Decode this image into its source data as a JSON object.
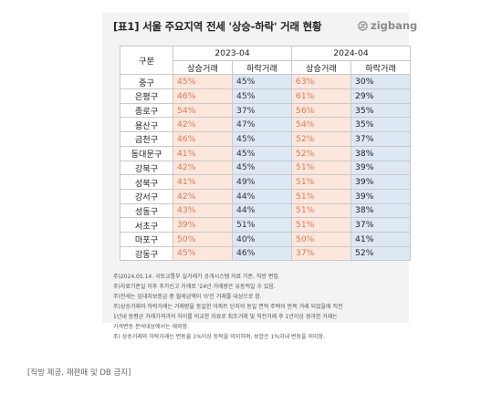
{
  "title": "[표1] 서울 주요지역 전세 '상승-하락' 거래 현황",
  "brand": "zigbang",
  "table": {
    "region_header": "구분",
    "period_1": "2023-04",
    "period_2": "2024-04",
    "sub_headers": [
      "상승거래",
      "하락거래",
      "상승거래",
      "하락거래"
    ],
    "rows": [
      {
        "region": "중구",
        "v": [
          "45%",
          "45%",
          "63%",
          "30%"
        ]
      },
      {
        "region": "은평구",
        "v": [
          "46%",
          "45%",
          "61%",
          "29%"
        ]
      },
      {
        "region": "종로구",
        "v": [
          "54%",
          "37%",
          "56%",
          "35%"
        ]
      },
      {
        "region": "용산구",
        "v": [
          "42%",
          "47%",
          "54%",
          "35%"
        ]
      },
      {
        "region": "금천구",
        "v": [
          "46%",
          "45%",
          "52%",
          "37%"
        ]
      },
      {
        "region": "동대문구",
        "v": [
          "41%",
          "45%",
          "52%",
          "38%"
        ]
      },
      {
        "region": "강북구",
        "v": [
          "42%",
          "45%",
          "51%",
          "39%"
        ]
      },
      {
        "region": "성북구",
        "v": [
          "41%",
          "49%",
          "51%",
          "39%"
        ]
      },
      {
        "region": "강서구",
        "v": [
          "42%",
          "44%",
          "51%",
          "39%"
        ]
      },
      {
        "region": "성동구",
        "v": [
          "43%",
          "44%",
          "51%",
          "38%"
        ]
      },
      {
        "region": "서초구",
        "v": [
          "39%",
          "51%",
          "51%",
          "37%"
        ]
      },
      {
        "region": "마포구",
        "v": [
          "50%",
          "40%",
          "50%",
          "41%"
        ]
      },
      {
        "region": "강동구",
        "v": [
          "45%",
          "46%",
          "37%",
          "52%"
        ]
      }
    ]
  },
  "notes": [
    "주)2024.05.14. 국토교통부 실거래가 공개시스템 자료 기준, 직방 편집.",
    "주)자료기준일 이후 추가신고 거래로 '24년 거래량은 유동적일 수 있음.",
    "주)전세는 임대차보증금 중 월세금액이 '0'인 거래를 대상으로 함.",
    "주)상승거래와 하락거래는 거래량을 동일한 아파트 단지의 동일 면적 주택이 반복 거래 되었을때 직전",
    "1년내 동평균 거래가격과의 차이를 비교한 자료로 최조거래 및 직전거래 후 1년이상 경과한 거래는",
    "가격변동 분석대상에서는 제외함.",
    "주) 상승거래와 하락거래는 변동율 1%이상 등락을 의미하며, 보합은 1%이내 변동을 의미함."
  ],
  "footer": "[직방 제공. 재판매 및 DB 금지]"
}
